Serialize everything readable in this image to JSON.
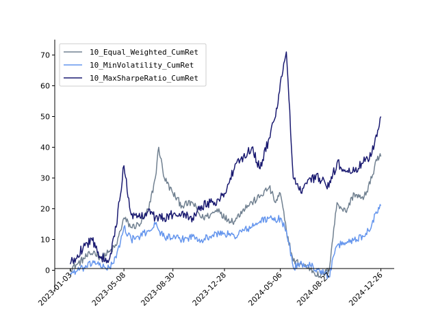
{
  "chart_data": {
    "type": "line",
    "title": "",
    "xlabel": "",
    "ylabel": "",
    "ylim": [
      -7,
      75
    ],
    "y_ticks": [
      0,
      10,
      20,
      30,
      40,
      50,
      60,
      70
    ],
    "x_ticks": [
      {
        "date": "2023-01-03",
        "label": "2023-01-03"
      },
      {
        "date": "2023-05-08",
        "label": "2023-05-08"
      },
      {
        "date": "2023-08-30",
        "label": "2023-08-30"
      },
      {
        "date": "2023-12-28",
        "label": "2023-12-28"
      },
      {
        "date": "2024-05-06",
        "label": "2024-05-06"
      },
      {
        "date": "2024-08-27",
        "label": "2024-08-27"
      },
      {
        "date": "2024-12-26",
        "label": "2024-12-26"
      }
    ],
    "xlim": [
      "2022-11-28",
      "2025-01-26"
    ],
    "grid": false,
    "legend_position": "top-left",
    "series": [
      {
        "name": "10_Equal_Weighted_CumRet",
        "color": "#708090",
        "points": [
          [
            "2023-01-03",
            0.5
          ],
          [
            "2023-01-20",
            2.0
          ],
          [
            "2023-02-10",
            4.5
          ],
          [
            "2023-03-01",
            6.0
          ],
          [
            "2023-03-15",
            4.0
          ],
          [
            "2023-04-05",
            6.0
          ],
          [
            "2023-04-20",
            8.0
          ],
          [
            "2023-05-08",
            17.0
          ],
          [
            "2023-05-25",
            14.0
          ],
          [
            "2023-06-15",
            15.0
          ],
          [
            "2023-07-05",
            20.0
          ],
          [
            "2023-07-20",
            30.0
          ],
          [
            "2023-07-28",
            40.0
          ],
          [
            "2023-08-10",
            30.0
          ],
          [
            "2023-08-30",
            25.0
          ],
          [
            "2023-09-20",
            21.0
          ],
          [
            "2023-10-15",
            22.0
          ],
          [
            "2023-11-05",
            17.0
          ],
          [
            "2023-11-25",
            18.0
          ],
          [
            "2023-12-15",
            20.0
          ],
          [
            "2023-12-28",
            17.0
          ],
          [
            "2024-01-20",
            16.0
          ],
          [
            "2024-02-10",
            20.0
          ],
          [
            "2024-03-01",
            22.0
          ],
          [
            "2024-03-20",
            24.0
          ],
          [
            "2024-04-10",
            27.0
          ],
          [
            "2024-04-25",
            22.0
          ],
          [
            "2024-05-06",
            25.0
          ],
          [
            "2024-05-20",
            13.0
          ],
          [
            "2024-06-05",
            3.0
          ],
          [
            "2024-06-25",
            2.0
          ],
          [
            "2024-07-15",
            0.5
          ],
          [
            "2024-08-05",
            -2.0
          ],
          [
            "2024-08-27",
            0.0
          ],
          [
            "2024-09-15",
            22.0
          ],
          [
            "2024-10-05",
            19.0
          ],
          [
            "2024-10-25",
            25.0
          ],
          [
            "2024-11-15",
            23.0
          ],
          [
            "2024-12-05",
            30.0
          ],
          [
            "2024-12-15",
            36.0
          ],
          [
            "2024-12-26",
            37.0
          ]
        ]
      },
      {
        "name": "10_MinVolatility_CumRet",
        "color": "#6495ED",
        "points": [
          [
            "2023-01-03",
            -1.0
          ],
          [
            "2023-01-20",
            0.0
          ],
          [
            "2023-02-10",
            1.0
          ],
          [
            "2023-03-01",
            3.0
          ],
          [
            "2023-03-15",
            1.0
          ],
          [
            "2023-04-05",
            1.0
          ],
          [
            "2023-04-20",
            4.0
          ],
          [
            "2023-05-08",
            14.0
          ],
          [
            "2023-05-25",
            10.0
          ],
          [
            "2023-06-15",
            11.0
          ],
          [
            "2023-07-05",
            13.0
          ],
          [
            "2023-07-20",
            15.0
          ],
          [
            "2023-07-28",
            13.0
          ],
          [
            "2023-08-10",
            11.0
          ],
          [
            "2023-08-30",
            10.5
          ],
          [
            "2023-09-20",
            10.0
          ],
          [
            "2023-10-15",
            11.0
          ],
          [
            "2023-11-05",
            10.0
          ],
          [
            "2023-11-25",
            11.0
          ],
          [
            "2023-12-15",
            12.0
          ],
          [
            "2023-12-28",
            12.0
          ],
          [
            "2024-01-20",
            11.0
          ],
          [
            "2024-02-10",
            13.0
          ],
          [
            "2024-03-01",
            14.0
          ],
          [
            "2024-03-20",
            16.0
          ],
          [
            "2024-04-10",
            17.0
          ],
          [
            "2024-04-25",
            16.0
          ],
          [
            "2024-05-06",
            17.0
          ],
          [
            "2024-05-20",
            13.0
          ],
          [
            "2024-06-05",
            1.0
          ],
          [
            "2024-06-25",
            2.0
          ],
          [
            "2024-07-15",
            1.5
          ],
          [
            "2024-08-05",
            0.0
          ],
          [
            "2024-08-27",
            -2.0
          ],
          [
            "2024-09-15",
            8.0
          ],
          [
            "2024-10-05",
            9.0
          ],
          [
            "2024-10-25",
            10.0
          ],
          [
            "2024-11-15",
            11.0
          ],
          [
            "2024-12-05",
            15.0
          ],
          [
            "2024-12-15",
            19.0
          ],
          [
            "2024-12-26",
            21.0
          ]
        ]
      },
      {
        "name": "10_MaxSharpeRatio_CumRet",
        "color": "#191970",
        "points": [
          [
            "2023-01-03",
            2.0
          ],
          [
            "2023-01-20",
            5.0
          ],
          [
            "2023-02-10",
            9.0
          ],
          [
            "2023-03-01",
            9.0
          ],
          [
            "2023-03-15",
            4.0
          ],
          [
            "2023-04-05",
            4.0
          ],
          [
            "2023-04-20",
            14.0
          ],
          [
            "2023-05-08",
            34.0
          ],
          [
            "2023-05-25",
            18.0
          ],
          [
            "2023-06-15",
            17.0
          ],
          [
            "2023-07-05",
            20.0
          ],
          [
            "2023-07-20",
            17.0
          ],
          [
            "2023-07-28",
            17.0
          ],
          [
            "2023-08-10",
            17.0
          ],
          [
            "2023-08-30",
            18.0
          ],
          [
            "2023-09-20",
            19.0
          ],
          [
            "2023-10-15",
            17.0
          ],
          [
            "2023-11-05",
            21.0
          ],
          [
            "2023-11-25",
            22.0
          ],
          [
            "2023-12-15",
            23.0
          ],
          [
            "2023-12-28",
            25.0
          ],
          [
            "2024-01-20",
            33.0
          ],
          [
            "2024-02-10",
            37.0
          ],
          [
            "2024-03-01",
            40.0
          ],
          [
            "2024-03-20",
            33.0
          ],
          [
            "2024-04-10",
            43.0
          ],
          [
            "2024-04-25",
            50.0
          ],
          [
            "2024-05-06",
            61.0
          ],
          [
            "2024-05-20",
            71.0
          ],
          [
            "2024-06-05",
            30.0
          ],
          [
            "2024-06-25",
            25.0
          ],
          [
            "2024-07-15",
            30.0
          ],
          [
            "2024-08-05",
            30.0
          ],
          [
            "2024-08-27",
            27.0
          ],
          [
            "2024-09-15",
            35.0
          ],
          [
            "2024-10-05",
            32.0
          ],
          [
            "2024-10-25",
            32.0
          ],
          [
            "2024-11-15",
            35.0
          ],
          [
            "2024-12-05",
            38.0
          ],
          [
            "2024-12-15",
            44.0
          ],
          [
            "2024-12-26",
            50.0
          ]
        ]
      }
    ]
  }
}
